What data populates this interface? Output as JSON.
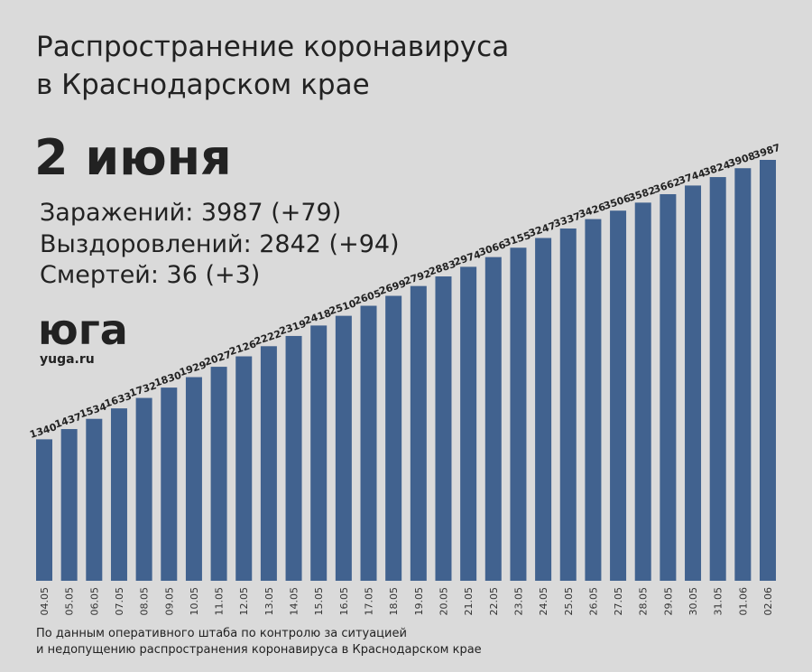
{
  "title_lines": [
    "Распространение коронавируса",
    "в Краснодарском крае"
  ],
  "date": "2 июня",
  "stats": [
    "Заражений: 3987 (+79)",
    "Выздоровлений: 2842 (+94)",
    "Смертей: 36 (+3)"
  ],
  "logo": "юга",
  "site": "yuga.ru",
  "footer": [
    "По данным оперативного штаба по контролю за ситуацией",
    "и недопущению распространения коронавируса в Краснодарском крае"
  ],
  "chart_data": {
    "type": "bar",
    "color": "#41628f",
    "categories": [
      "04.05",
      "05.05",
      "06.05",
      "07.05",
      "08.05",
      "09.05",
      "10.05",
      "11.05",
      "12.05",
      "13.05",
      "14.05",
      "15.05",
      "16.05",
      "17.05",
      "18.05",
      "19.05",
      "20.05",
      "21.05",
      "22.05",
      "23.05",
      "24.05",
      "25.05",
      "26.05",
      "27.05",
      "28.05",
      "29.05",
      "30.05",
      "31.05",
      "01.06",
      "02.06"
    ],
    "values": [
      1340,
      1437,
      1534,
      1633,
      1732,
      1830,
      1929,
      2027,
      2126,
      2222,
      2319,
      2418,
      2510,
      2605,
      2699,
      2792,
      2883,
      2974,
      3066,
      3155,
      3247,
      3337,
      3426,
      3506,
      3582,
      3662,
      3744,
      3824,
      3908,
      3987
    ]
  }
}
